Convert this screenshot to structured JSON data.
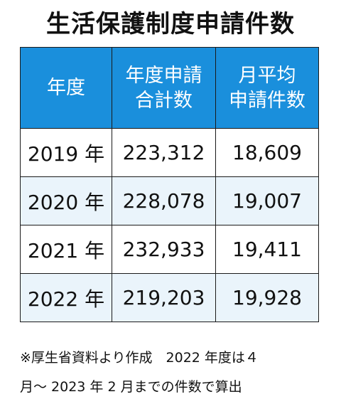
{
  "title": "生活保護制度申請件数",
  "chart_data": {
    "type": "table",
    "title": "生活保護制度申請件数",
    "headers": [
      {
        "line1": "年度",
        "line2": ""
      },
      {
        "line1": "年度申請",
        "line2": "合計数"
      },
      {
        "line1": "月平均",
        "line2": "申請件数"
      }
    ],
    "rows": [
      {
        "year": "2019 年",
        "total": "223,312",
        "monthly": "18,609"
      },
      {
        "year": "2020 年",
        "total": "228,078",
        "monthly": "19,007"
      },
      {
        "year": "2021 年",
        "total": "232,933",
        "monthly": "19,411"
      },
      {
        "year": "2022 年",
        "total": "219,203",
        "monthly": "19,928"
      }
    ],
    "colors": {
      "header_bg": "#1a8fdc",
      "header_text": "#ffffff",
      "row_tint": "#eaf4fb",
      "row_white": "#ffffff",
      "border": "#1a1a1a"
    }
  },
  "notes": {
    "line1": "※厚生省資料より作成　2022 年度は４",
    "line2": "月～ 2023 年 2 月までの件数で算出"
  }
}
